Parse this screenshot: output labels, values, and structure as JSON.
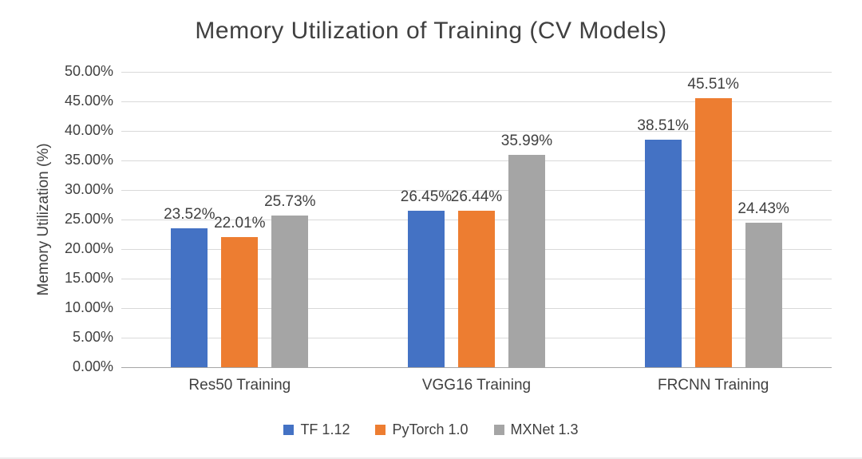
{
  "chart_data": {
    "type": "bar",
    "title": "Memory Utilization of Training (CV Models)",
    "xlabel": "",
    "ylabel": "Memory Utilization (%)",
    "categories": [
      "Res50 Training",
      "VGG16 Training",
      "FRCNN Training"
    ],
    "series": [
      {
        "name": "TF 1.12",
        "color": "#4472C4",
        "values": [
          23.52,
          26.45,
          38.51
        ],
        "labels": [
          "23.52%",
          "26.45%",
          "38.51%"
        ]
      },
      {
        "name": "PyTorch 1.0",
        "color": "#ED7D31",
        "values": [
          22.01,
          26.44,
          45.51
        ],
        "labels": [
          "22.01%",
          "26.44%",
          "45.51%"
        ]
      },
      {
        "name": "MXNet 1.3",
        "color": "#A5A5A5",
        "values": [
          25.73,
          35.99,
          24.43
        ],
        "labels": [
          "25.73%",
          "35.99%",
          "24.43%"
        ]
      }
    ],
    "ylim": [
      0,
      50
    ],
    "yticks": [
      0,
      5,
      10,
      15,
      20,
      25,
      30,
      35,
      40,
      45,
      50
    ],
    "ytick_labels": [
      "0.00%",
      "5.00%",
      "10.00%",
      "15.00%",
      "20.00%",
      "25.00%",
      "30.00%",
      "35.00%",
      "40.00%",
      "45.00%",
      "50.00%"
    ],
    "grid": true,
    "legend_position": "bottom"
  }
}
